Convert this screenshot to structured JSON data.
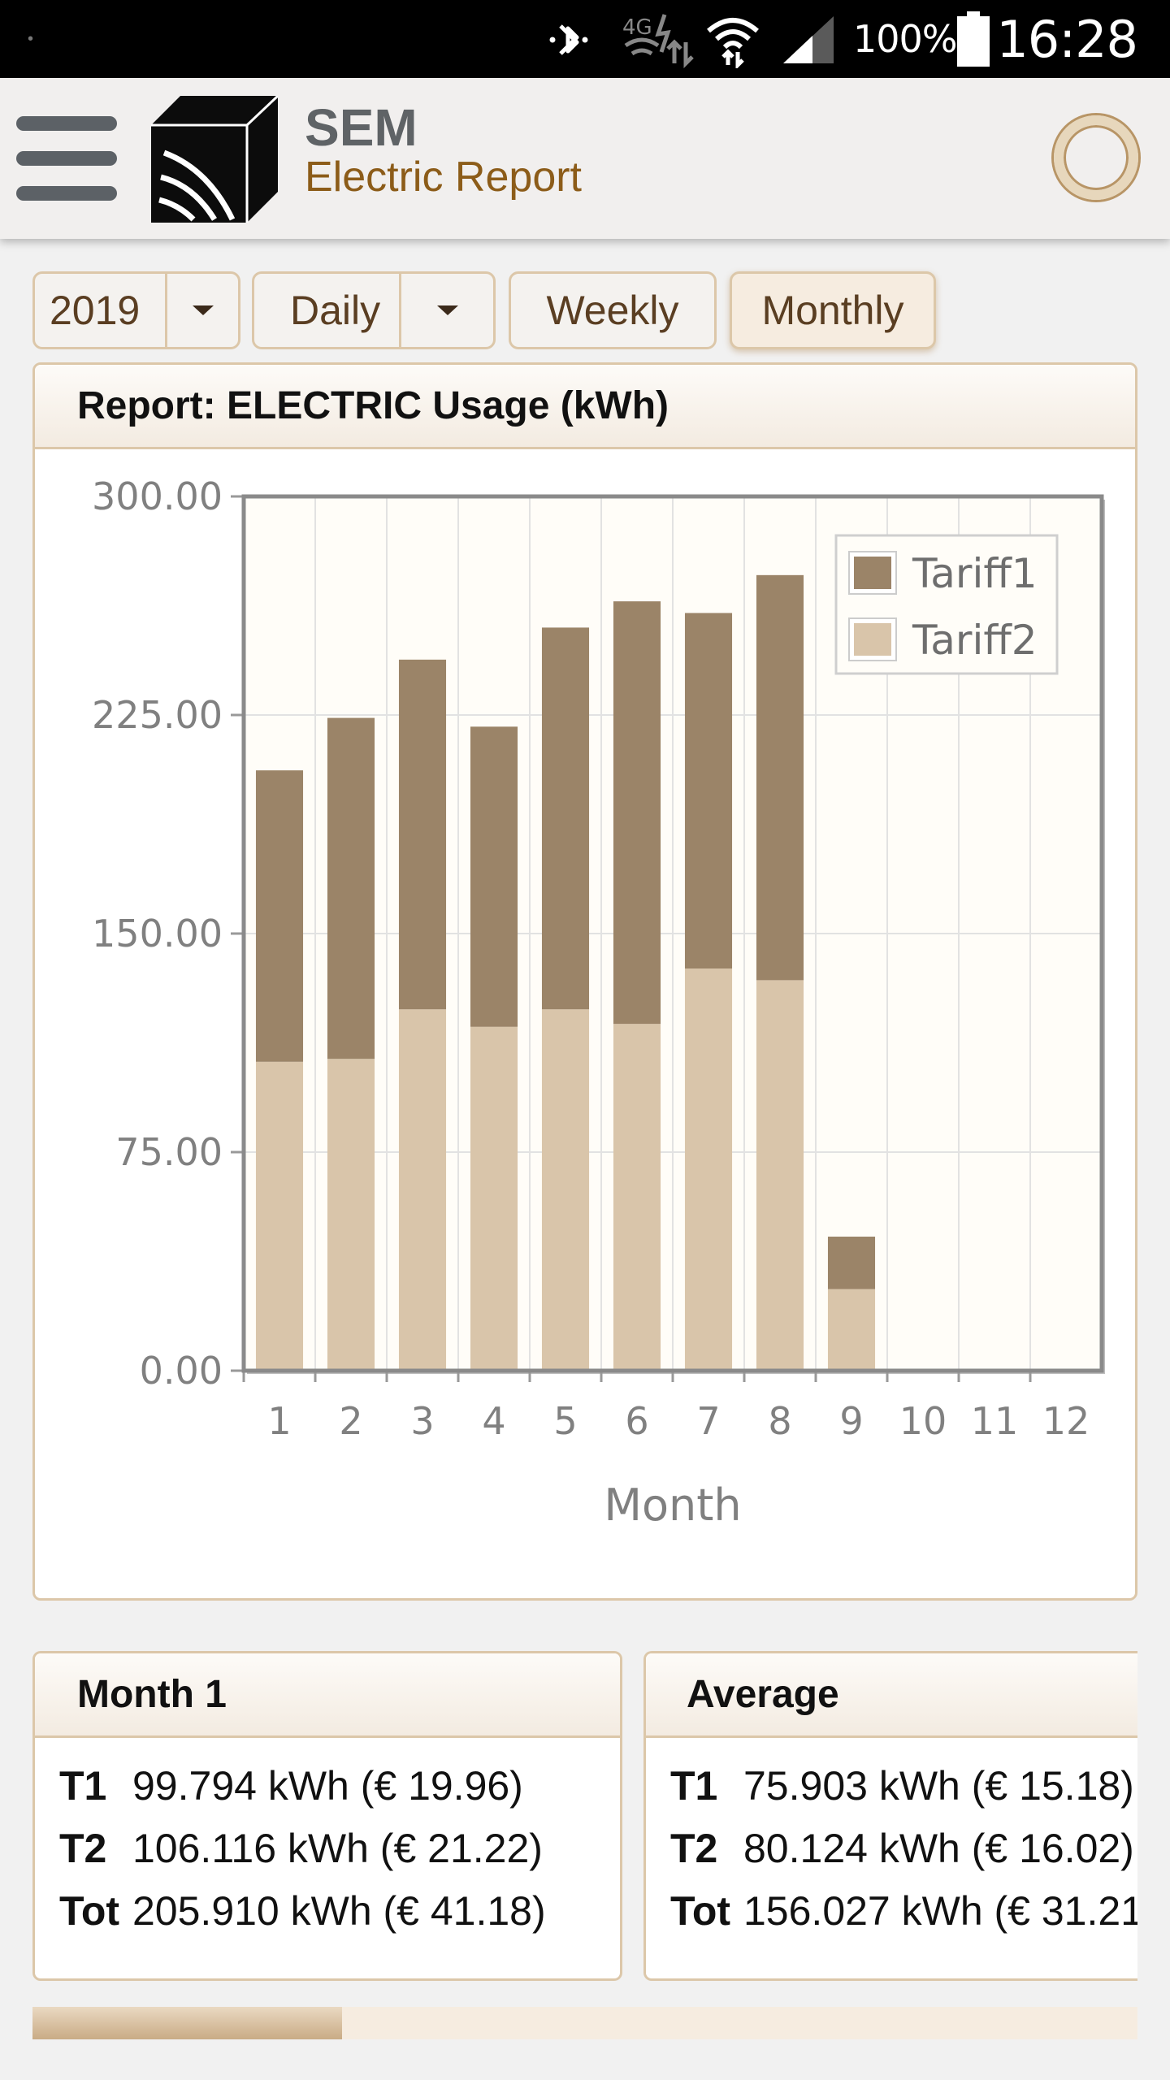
{
  "status_bar": {
    "time": "16:28",
    "battery": "100%",
    "network": "4G",
    "icons": [
      "bluetooth-icon",
      "signal-4g-icon",
      "wifi-icon",
      "cell-signal-icon",
      "battery-icon"
    ]
  },
  "header": {
    "title": "SEM",
    "subtitle": "Electric Report",
    "menu_icon": "hamburger-menu-icon",
    "logo_icon": "cube-logo-icon",
    "loading_icon": "spinner-ring-icon"
  },
  "controls": {
    "year": "2019",
    "period": "Daily",
    "weekly": "Weekly",
    "monthly": "Monthly"
  },
  "report": {
    "title": "Report: ELECTRIC Usage (kWh)"
  },
  "chart_data": {
    "type": "bar",
    "stacked": true,
    "categories": [
      "1",
      "2",
      "3",
      "4",
      "5",
      "6",
      "7",
      "8",
      "9",
      "10",
      "11",
      "12"
    ],
    "series": [
      {
        "name": "Tariff2",
        "color": "#d9c5aa",
        "values": [
          106,
          107,
          124,
          118,
          124,
          119,
          138,
          134,
          28,
          0,
          0,
          0
        ]
      },
      {
        "name": "Tariff1",
        "color": "#9b8468",
        "values": [
          100,
          117,
          120,
          103,
          131,
          145,
          122,
          139,
          18,
          0,
          0,
          0
        ]
      }
    ],
    "xlabel": "Month",
    "ylabel": "",
    "ylim": [
      0,
      300
    ],
    "yticks": [
      "0.00",
      "75.00",
      "150.00",
      "225.00",
      "300.00"
    ],
    "grid": true,
    "legend": "top-right",
    "legend_entries": [
      "Tariff1",
      "Tariff2"
    ]
  },
  "month_panel": {
    "title": "Month 1",
    "rows": [
      {
        "key": "T1",
        "value": "99.794 kWh (€ 19.96)"
      },
      {
        "key": "T2",
        "value": "106.116 kWh (€ 21.22)"
      },
      {
        "key": "Tot",
        "value": "205.910 kWh (€ 41.18)"
      }
    ]
  },
  "average_panel": {
    "title": "Average",
    "rows": [
      {
        "key": "T1",
        "value": "75.903 kWh (€ 15.18)"
      },
      {
        "key": "T2",
        "value": "80.124 kWh (€ 16.02)"
      },
      {
        "key": "Tot",
        "value": "156.027 kWh (€ 31.21"
      }
    ]
  },
  "scroll": {
    "position": 0.28
  },
  "colors": {
    "accent": "#8c5c19",
    "border": "#dcc7a9",
    "tariff1": "#9b8468",
    "tariff2": "#d9c5aa",
    "plot_bg": "#fffdf8"
  }
}
